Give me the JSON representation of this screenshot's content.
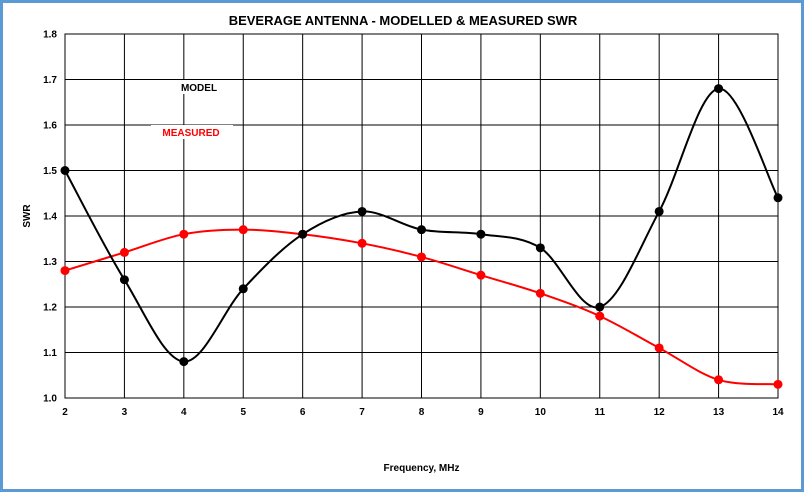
{
  "chart_data": {
    "type": "line",
    "title": "BEVERAGE ANTENNA - MODELLED & MEASURED SWR",
    "xlabel": "Frequency, MHz",
    "ylabel": "SWR",
    "xlim": [
      2,
      14
    ],
    "ylim": [
      1.0,
      1.8
    ],
    "x_ticks": [
      2,
      3,
      4,
      5,
      6,
      7,
      8,
      9,
      10,
      11,
      12,
      13,
      14
    ],
    "y_ticks": [
      "1.0",
      "1.1",
      "1.2",
      "1.3",
      "1.4",
      "1.5",
      "1.6",
      "1.7",
      "1.8"
    ],
    "grid": true,
    "legend_position": "top-left",
    "series": [
      {
        "name": "MODEL",
        "color": "#000000",
        "x": [
          2,
          3,
          4,
          5,
          6,
          7,
          8,
          9,
          10,
          11,
          12,
          13,
          14
        ],
        "values": [
          1.5,
          1.26,
          1.08,
          1.24,
          1.36,
          1.41,
          1.37,
          1.36,
          1.33,
          1.2,
          1.41,
          1.68,
          1.44
        ]
      },
      {
        "name": "MEASURED",
        "color": "#ff0000",
        "x": [
          2,
          3,
          4,
          5,
          6,
          7,
          8,
          9,
          10,
          11,
          12,
          13,
          14
        ],
        "values": [
          1.28,
          1.32,
          1.36,
          1.37,
          1.36,
          1.34,
          1.31,
          1.27,
          1.23,
          1.18,
          1.11,
          1.04,
          1.03
        ]
      }
    ]
  }
}
